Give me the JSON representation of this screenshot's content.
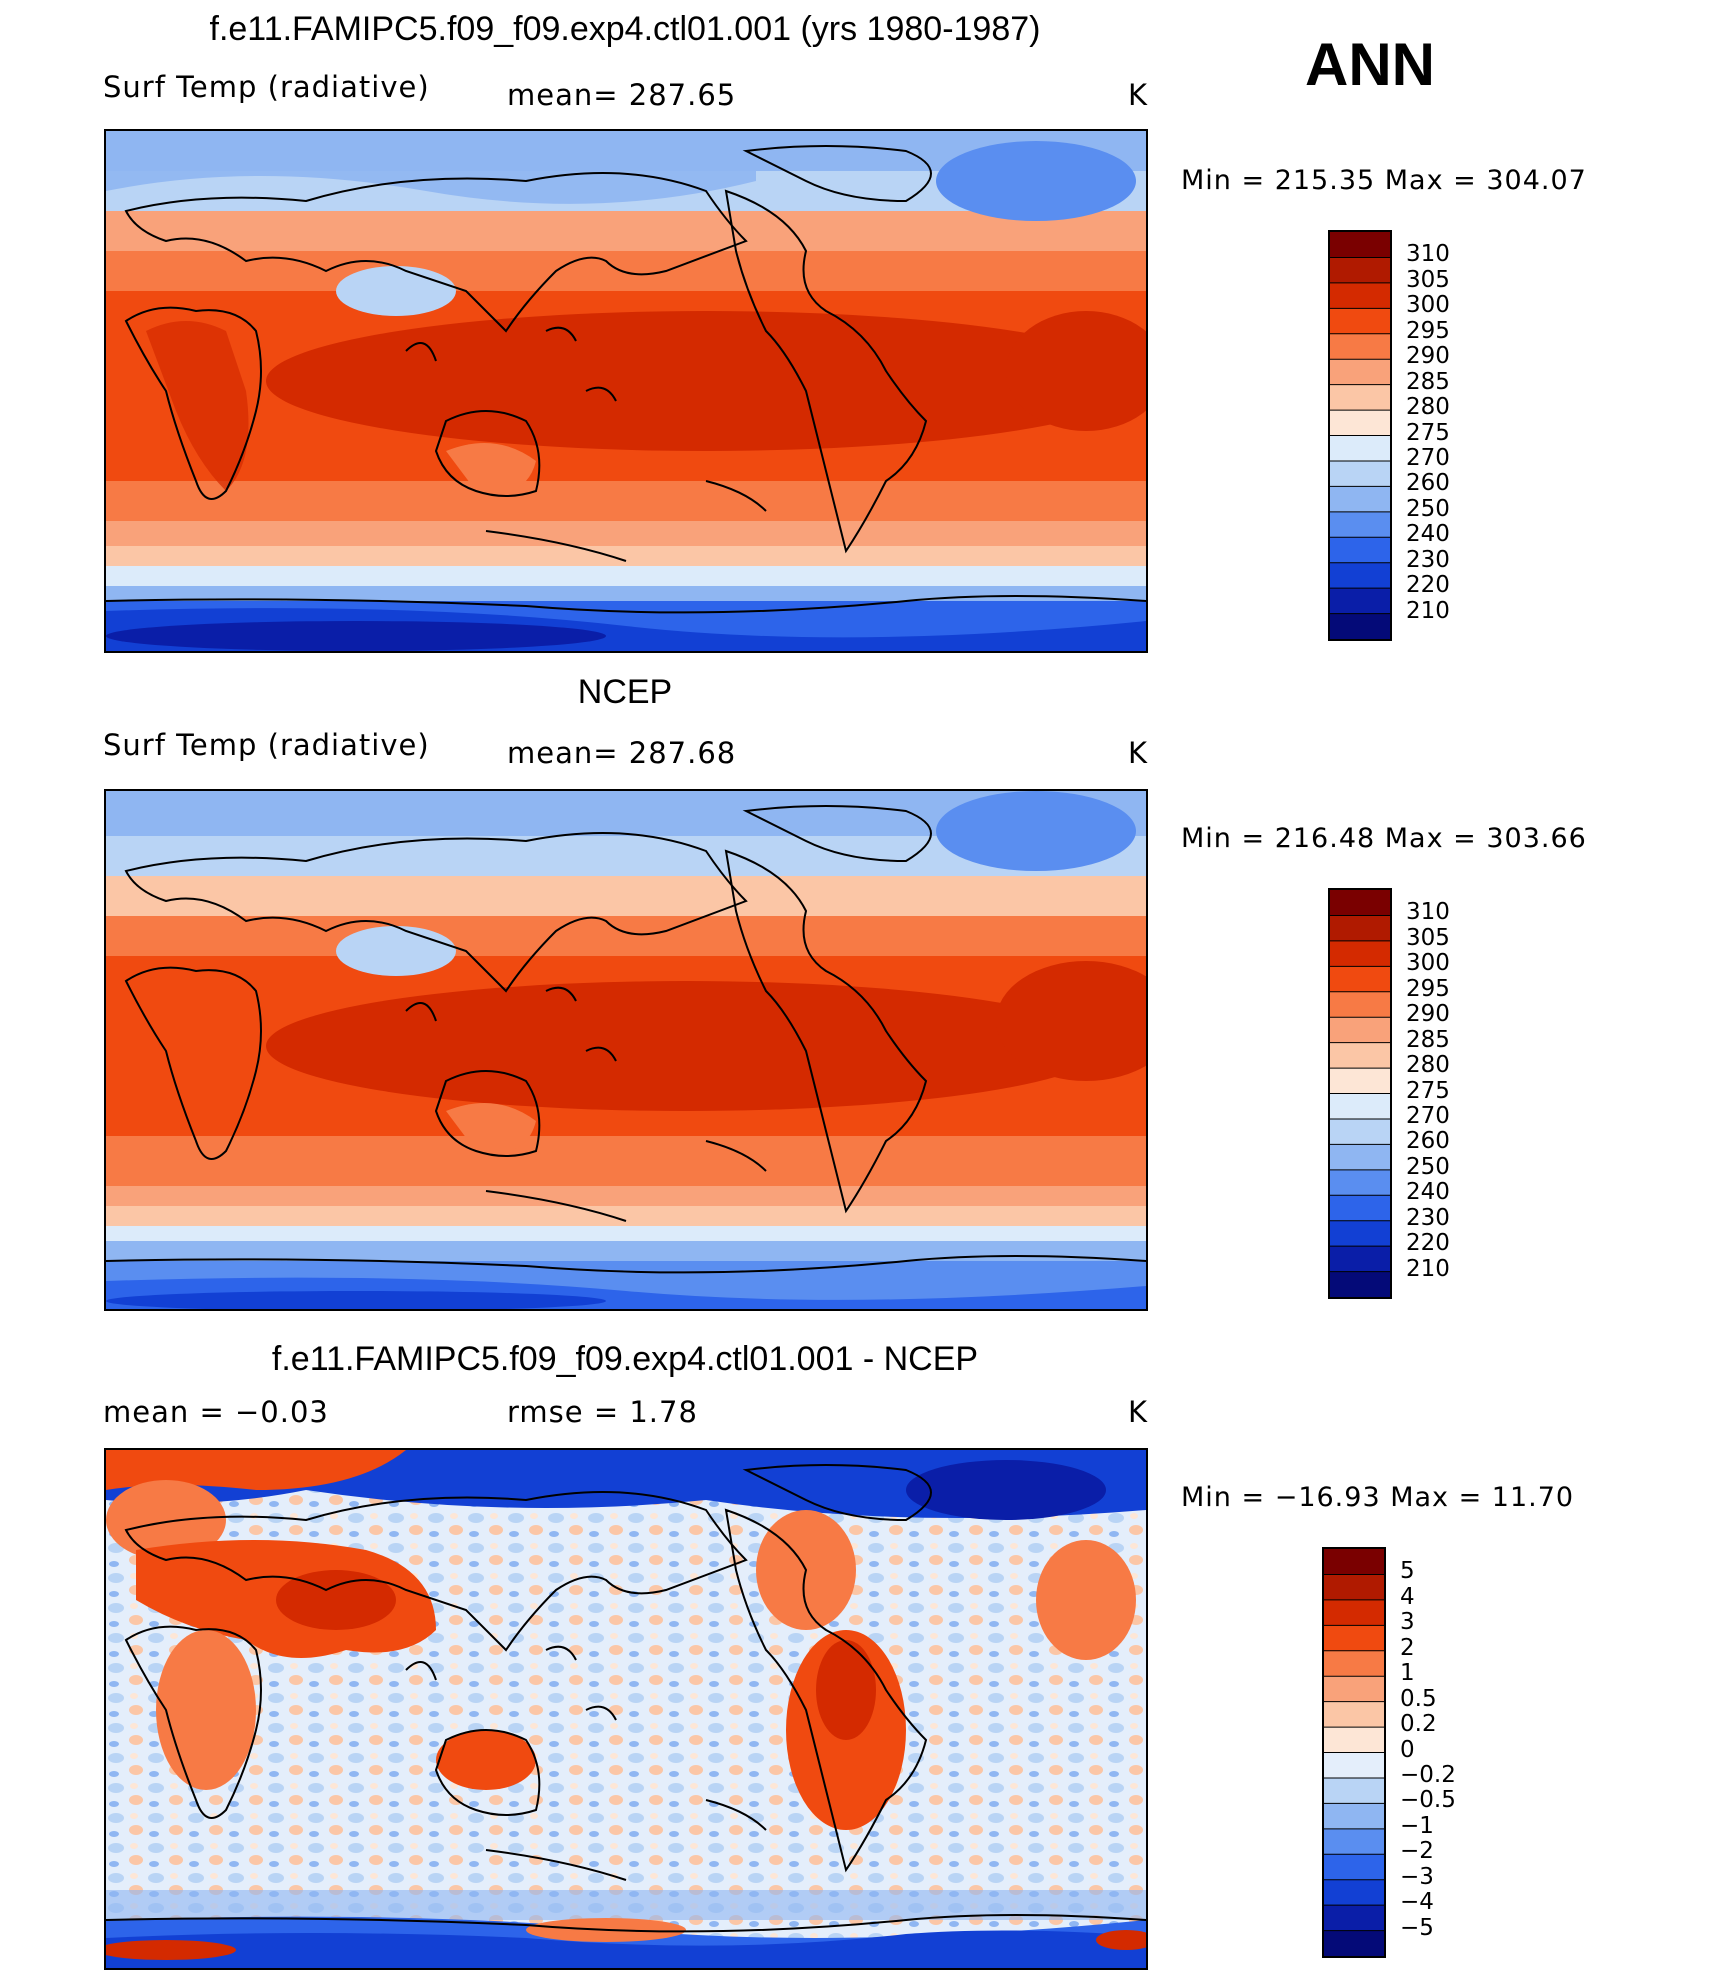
{
  "season": "ANN",
  "panels": [
    {
      "id": "model",
      "title": "f.e11.FAMIPC5.f09_f09.exp4.ctl01.001 (yrs 1980-1987)",
      "left_label": "Surf Temp (radiative)",
      "center_label": "mean= 287.65",
      "units": "K",
      "minmax": "Min = 215.35 Max = 304.07",
      "colorbar": [
        "310",
        "305",
        "300",
        "295",
        "290",
        "285",
        "280",
        "275",
        "270",
        "260",
        "250",
        "240",
        "230",
        "220",
        "210"
      ]
    },
    {
      "id": "obs",
      "title": "NCEP",
      "left_label": "Surf Temp (radiative)",
      "center_label": "mean= 287.68",
      "units": "K",
      "minmax": "Min = 216.48 Max = 303.66",
      "colorbar": [
        "310",
        "305",
        "300",
        "295",
        "290",
        "285",
        "280",
        "275",
        "270",
        "260",
        "250",
        "240",
        "230",
        "220",
        "210"
      ]
    },
    {
      "id": "diff",
      "title": "f.e11.FAMIPC5.f09_f09.exp4.ctl01.001 - NCEP",
      "left_label": "mean =   −0.03",
      "center_label": "rmse =    1.78",
      "units": "K",
      "minmax": "Min = −16.93 Max =   11.70",
      "colorbar": [
        "5",
        "4",
        "3",
        "2",
        "1",
        "0.5",
        "0.2",
        "0",
        "−0.2",
        "−0.5",
        "−1",
        "−2",
        "−3",
        "−4",
        "−5"
      ]
    }
  ],
  "colors": {
    "abs_scale": [
      "#7a0000",
      "#b01a00",
      "#d42a00",
      "#f04a10",
      "#f77a45",
      "#f9a27a",
      "#fbc6a6",
      "#fde6d6",
      "#dcebfa",
      "#b9d4f5",
      "#8fb6f2",
      "#5a8ef0",
      "#2d64ea",
      "#1240d4",
      "#0a1ea8",
      "#040a78"
    ],
    "diff_scale": [
      "#7a0000",
      "#b01a00",
      "#d42a00",
      "#f04a10",
      "#f77a45",
      "#f9a27a",
      "#fbc6a6",
      "#fde6d6",
      "#e4eefb",
      "#b9d4f5",
      "#8fb6f2",
      "#5a8ef0",
      "#2d64ea",
      "#1240d4",
      "#0a1ea8",
      "#040a78"
    ]
  }
}
